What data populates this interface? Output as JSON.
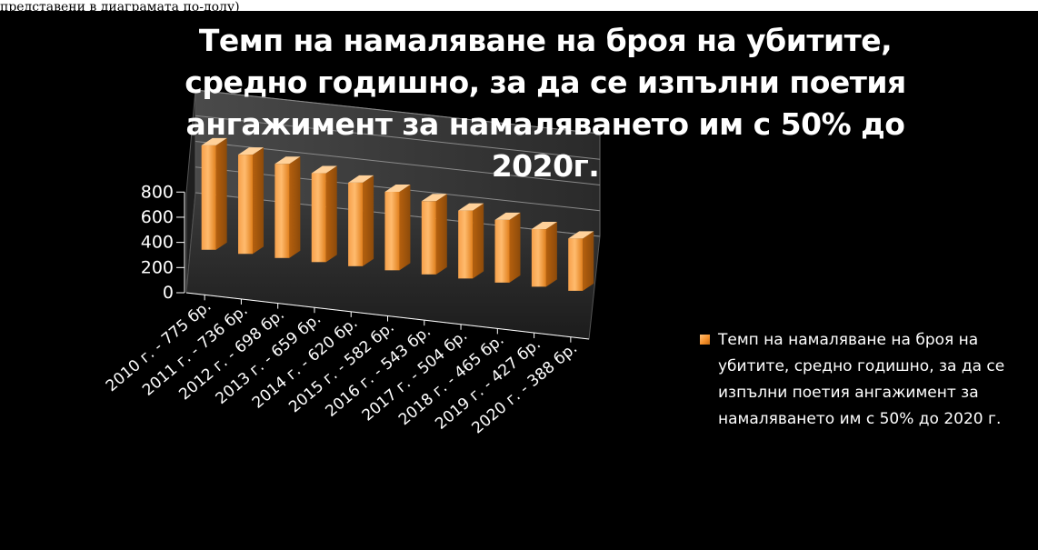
{
  "caption": "представени в диаграмата по-долу)",
  "chart_data": {
    "type": "bar",
    "title": "Темп на намаляване на броя на убитите, средно годишно, за да се изпълни поетия ангажимент за намаляването им с 50% до 2020г.",
    "categories": [
      "2010 г. - 775 бр.",
      "2011 г. - 736 бр.",
      "2012 г. - 698 бр.",
      "2013 г. - 659 бр.",
      "2014 г. - 620 бр.",
      "2015 г. - 582 бр.",
      "2016 г. - 543 бр.",
      "2017 г. - 504 бр.",
      "2018 г. - 465 бр.",
      "2019 г. - 427 бр.",
      "2020 г. - 388 бр."
    ],
    "series": [
      {
        "name": "Темп на намаляване на броя на убитите, средно годишно, за да се изпълни поетия ангажимент за намаляването им с 50% до 2020 г.",
        "values": [
          775,
          736,
          698,
          659,
          620,
          582,
          543,
          504,
          465,
          427,
          388
        ]
      }
    ],
    "ylim": [
      0,
      800
    ],
    "yticks": [
      "0",
      "200",
      "400",
      "600",
      "800"
    ],
    "xlabel": "",
    "ylabel": "",
    "grid": true,
    "legend_position": "right",
    "bar_color": "#f7922c",
    "background_color": "#000000",
    "text_color": "#ffffff"
  }
}
